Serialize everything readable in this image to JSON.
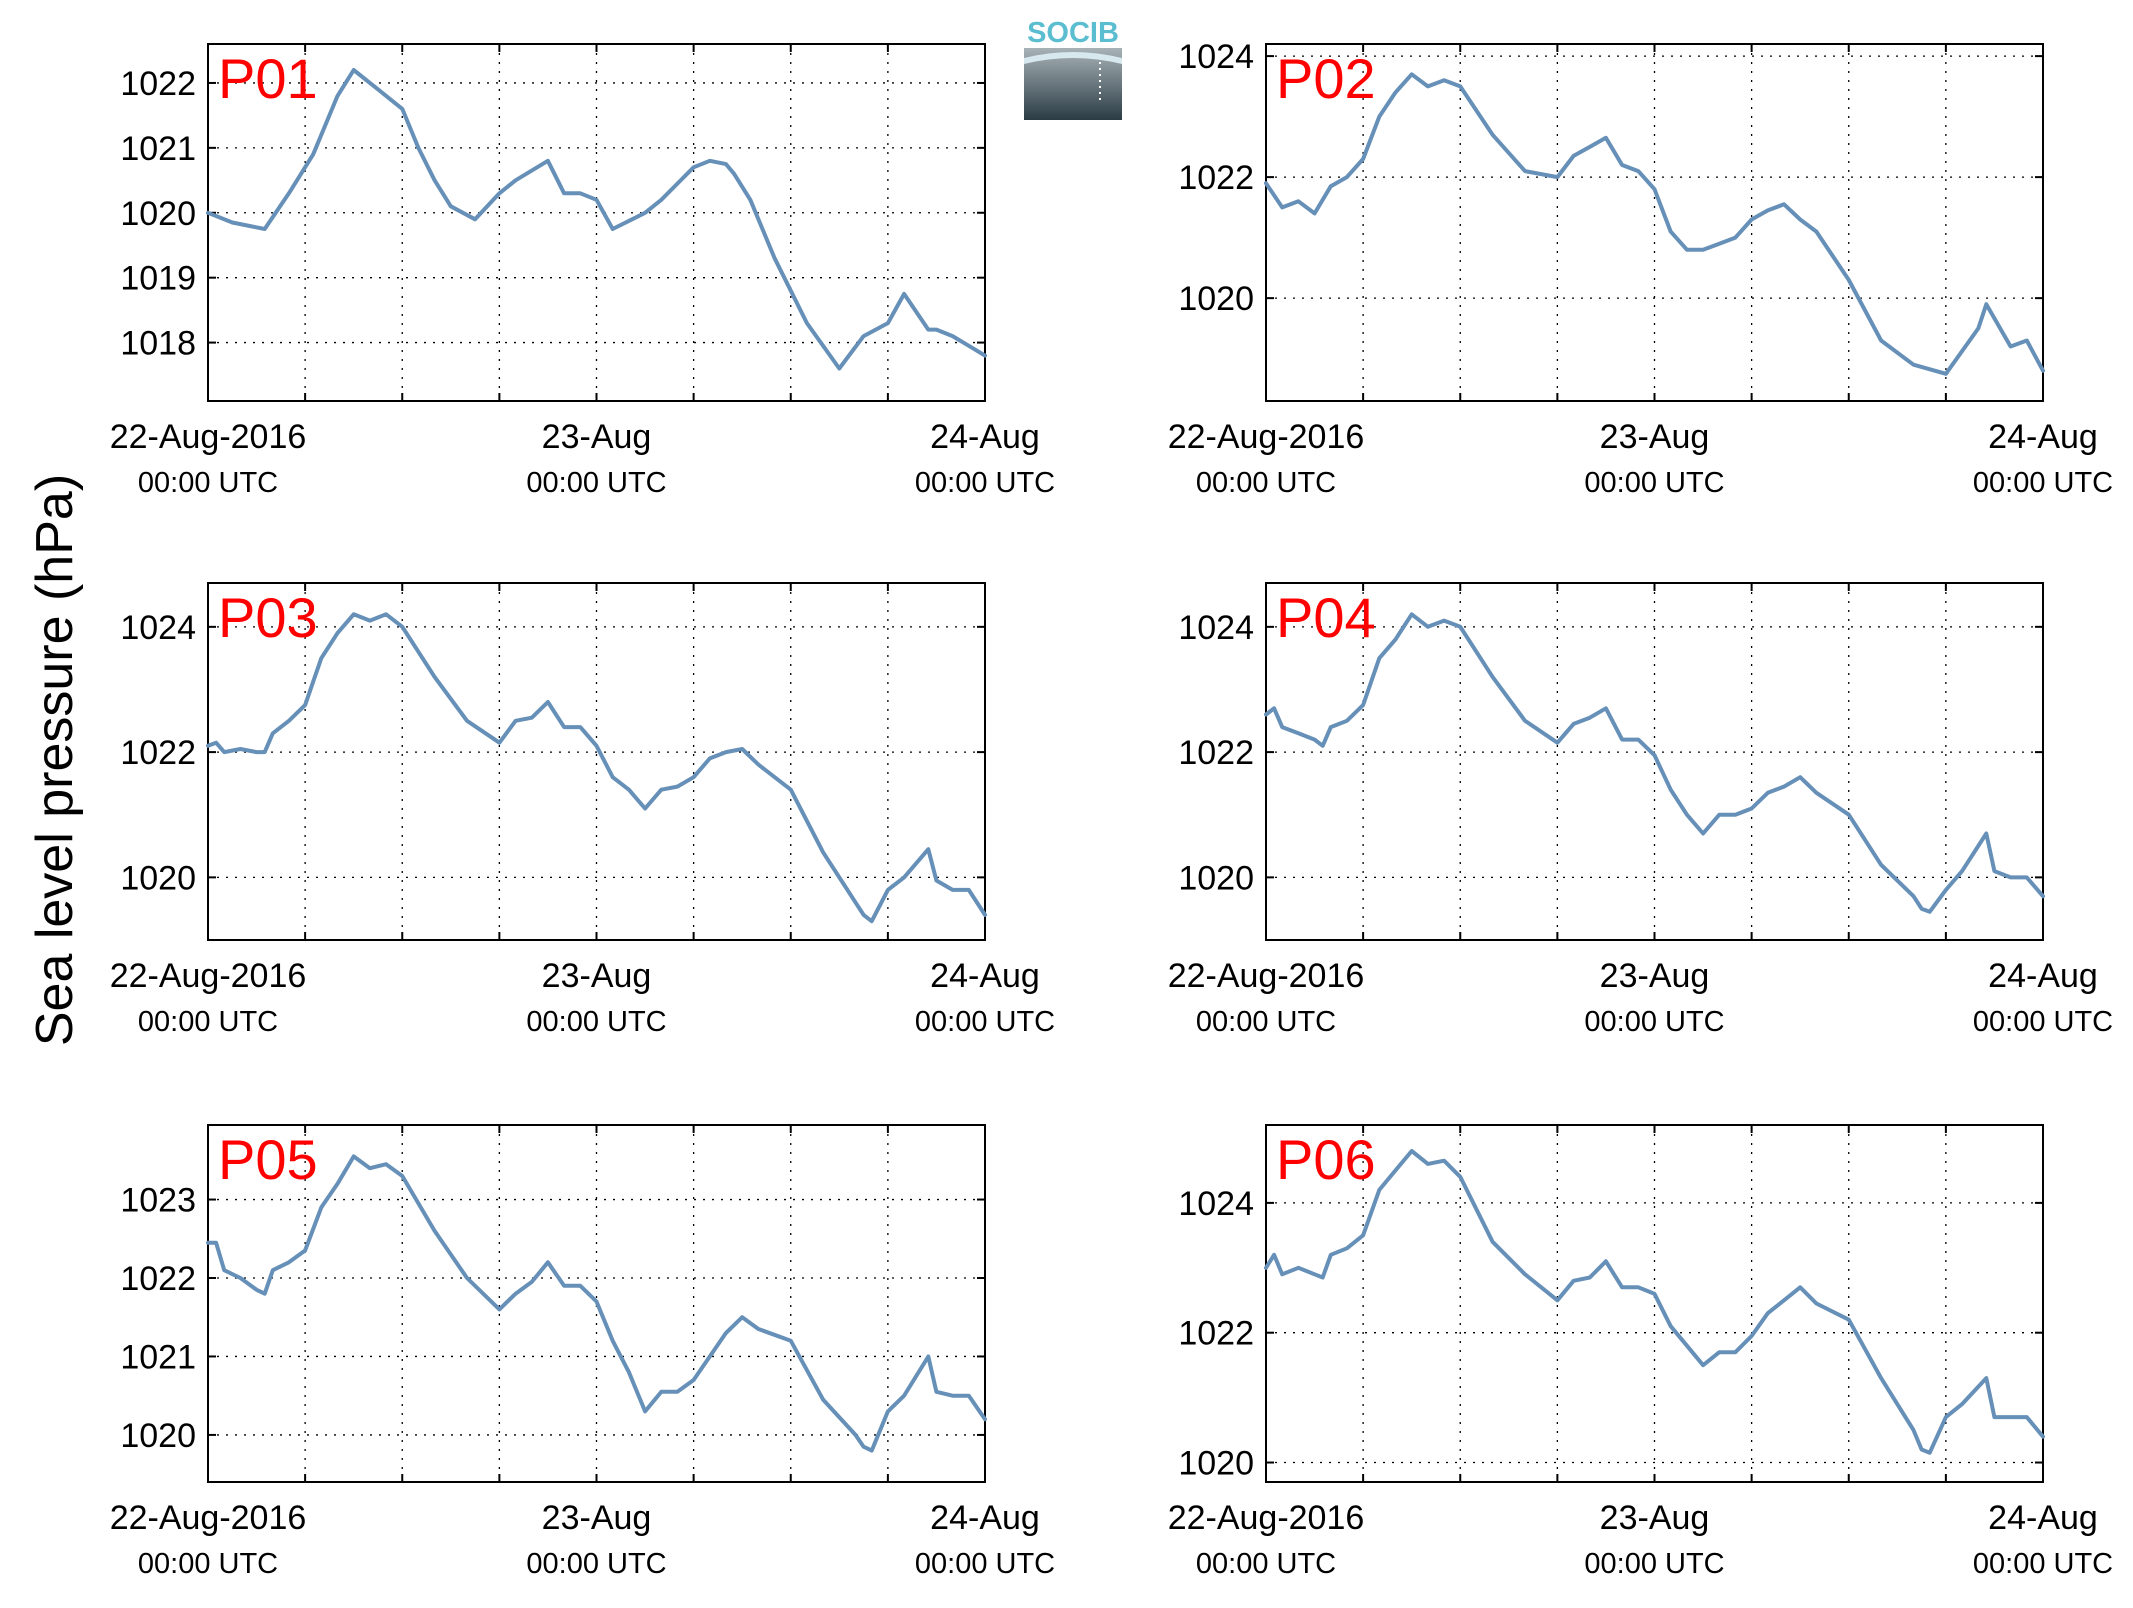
{
  "figure": {
    "ylabel": "Sea level pressure (hPa)",
    "logo_text": "SOCIB",
    "colors": {
      "line": "#6690b8",
      "panel_label": "#ff0000",
      "logo_text": "#5bbdd0"
    }
  },
  "chart_data": [
    {
      "type": "line",
      "title": "P01",
      "x_ticks": [
        {
          "x": 0,
          "date": "22-Aug-2016",
          "time": "00:00 UTC"
        },
        {
          "x": 24,
          "date": "23-Aug",
          "time": "00:00 UTC"
        },
        {
          "x": 48,
          "date": "24-Aug",
          "time": "00:00 UTC"
        }
      ],
      "xlim": [
        0,
        48
      ],
      "x_grid_step_hours": 6,
      "ylim": [
        1017.1,
        1022.6
      ],
      "yticks": [
        1018,
        1019,
        1020,
        1021,
        1022
      ],
      "grid": true,
      "series": [
        {
          "x": [
            0,
            1.5,
            3.5,
            5,
            6.5,
            8,
            9,
            10,
            12,
            13,
            14,
            15,
            16.5,
            18,
            19,
            21,
            22,
            23,
            24,
            25,
            27,
            28,
            29,
            30,
            31,
            32,
            32.5,
            33.5,
            35,
            37,
            39,
            40.5,
            42,
            43,
            44.5,
            45,
            46,
            47,
            48
          ],
          "y": [
            1020.0,
            1019.85,
            1019.75,
            1020.3,
            1020.9,
            1021.8,
            1022.2,
            1022.0,
            1021.6,
            1021.0,
            1020.5,
            1020.1,
            1019.9,
            1020.3,
            1020.5,
            1020.8,
            1020.3,
            1020.3,
            1020.2,
            1019.75,
            1020.0,
            1020.2,
            1020.45,
            1020.7,
            1020.8,
            1020.75,
            1020.6,
            1020.2,
            1019.3,
            1018.3,
            1017.6,
            1018.1,
            1018.3,
            1018.75,
            1018.2,
            1018.2,
            1018.1,
            1017.95,
            1017.8
          ]
        }
      ]
    },
    {
      "type": "line",
      "title": "P02",
      "x_ticks": [
        {
          "x": 0,
          "date": "22-Aug-2016",
          "time": "00:00 UTC"
        },
        {
          "x": 24,
          "date": "23-Aug",
          "time": "00:00 UTC"
        },
        {
          "x": 48,
          "date": "24-Aug",
          "time": "00:00 UTC"
        }
      ],
      "xlim": [
        0,
        48
      ],
      "x_grid_step_hours": 6,
      "ylim": [
        1018.3,
        1024.2
      ],
      "yticks": [
        1020,
        1022,
        1024
      ],
      "grid": true,
      "series": [
        {
          "x": [
            0,
            1,
            2,
            3,
            4,
            5,
            6,
            7,
            8,
            9,
            10,
            11,
            12,
            14,
            16,
            18,
            19,
            20,
            21,
            22,
            23,
            24,
            25,
            26,
            27,
            28,
            29,
            30,
            31,
            32,
            33,
            34,
            36,
            38,
            40,
            42,
            44,
            44.5,
            46,
            47,
            48
          ],
          "y": [
            1021.9,
            1021.5,
            1021.6,
            1021.4,
            1021.85,
            1022.0,
            1022.3,
            1023.0,
            1023.4,
            1023.7,
            1023.5,
            1023.6,
            1023.5,
            1022.7,
            1022.1,
            1022.0,
            1022.35,
            1022.5,
            1022.65,
            1022.2,
            1022.1,
            1021.8,
            1021.1,
            1020.8,
            1020.8,
            1020.9,
            1021.0,
            1021.3,
            1021.45,
            1021.55,
            1021.3,
            1021.1,
            1020.3,
            1019.3,
            1018.9,
            1018.75,
            1019.5,
            1019.9,
            1019.2,
            1019.3,
            1018.8
          ]
        }
      ]
    },
    {
      "type": "line",
      "title": "P03",
      "x_ticks": [
        {
          "x": 0,
          "date": "22-Aug-2016",
          "time": "00:00 UTC"
        },
        {
          "x": 24,
          "date": "23-Aug",
          "time": "00:00 UTC"
        },
        {
          "x": 48,
          "date": "24-Aug",
          "time": "00:00 UTC"
        }
      ],
      "xlim": [
        0,
        48
      ],
      "x_grid_step_hours": 6,
      "ylim": [
        1019.0,
        1024.7
      ],
      "yticks": [
        1020,
        1022,
        1024
      ],
      "grid": true,
      "series": [
        {
          "x": [
            0,
            0.5,
            1,
            2,
            3,
            3.5,
            4,
            5,
            6,
            7,
            8,
            9,
            10,
            11,
            12,
            14,
            16,
            18,
            19,
            20,
            21,
            22,
            23,
            24,
            25,
            26,
            27,
            28,
            29,
            30,
            31,
            32,
            33,
            34,
            36,
            38,
            40,
            40.5,
            41,
            42,
            43,
            44.5,
            45,
            46,
            47,
            48
          ],
          "y": [
            1022.1,
            1022.15,
            1022.0,
            1022.05,
            1022.0,
            1022.0,
            1022.3,
            1022.5,
            1022.75,
            1023.5,
            1023.9,
            1024.2,
            1024.1,
            1024.2,
            1024.0,
            1023.2,
            1022.5,
            1022.15,
            1022.5,
            1022.55,
            1022.8,
            1022.4,
            1022.4,
            1022.1,
            1021.6,
            1021.4,
            1021.1,
            1021.4,
            1021.45,
            1021.6,
            1021.9,
            1022.0,
            1022.05,
            1021.8,
            1021.4,
            1020.4,
            1019.6,
            1019.4,
            1019.3,
            1019.8,
            1020.0,
            1020.45,
            1019.95,
            1019.8,
            1019.8,
            1019.4
          ]
        }
      ]
    },
    {
      "type": "line",
      "title": "P04",
      "x_ticks": [
        {
          "x": 0,
          "date": "22-Aug-2016",
          "time": "00:00 UTC"
        },
        {
          "x": 24,
          "date": "23-Aug",
          "time": "00:00 UTC"
        },
        {
          "x": 48,
          "date": "24-Aug",
          "time": "00:00 UTC"
        }
      ],
      "xlim": [
        0,
        48
      ],
      "x_grid_step_hours": 6,
      "ylim": [
        1019.0,
        1024.7
      ],
      "yticks": [
        1020,
        1022,
        1024
      ],
      "grid": true,
      "series": [
        {
          "x": [
            0,
            0.5,
            1,
            2,
            3,
            3.5,
            4,
            5,
            6,
            7,
            8,
            9,
            10,
            11,
            12,
            14,
            16,
            18,
            19,
            20,
            21,
            22,
            23,
            24,
            25,
            26,
            27,
            28,
            29,
            30,
            31,
            32,
            33,
            34,
            36,
            38,
            40,
            40.5,
            41,
            42,
            43,
            44.5,
            45,
            46,
            47,
            48
          ],
          "y": [
            1022.6,
            1022.7,
            1022.4,
            1022.3,
            1022.2,
            1022.1,
            1022.4,
            1022.5,
            1022.75,
            1023.5,
            1023.8,
            1024.2,
            1024.0,
            1024.1,
            1024.0,
            1023.2,
            1022.5,
            1022.15,
            1022.45,
            1022.55,
            1022.7,
            1022.2,
            1022.2,
            1021.95,
            1021.4,
            1021.0,
            1020.7,
            1021.0,
            1021.0,
            1021.1,
            1021.35,
            1021.45,
            1021.6,
            1021.35,
            1021.0,
            1020.2,
            1019.7,
            1019.5,
            1019.45,
            1019.8,
            1020.1,
            1020.7,
            1020.1,
            1020.0,
            1020.0,
            1019.7
          ]
        }
      ]
    },
    {
      "type": "line",
      "title": "P05",
      "x_ticks": [
        {
          "x": 0,
          "date": "22-Aug-2016",
          "time": "00:00 UTC"
        },
        {
          "x": 24,
          "date": "23-Aug",
          "time": "00:00 UTC"
        },
        {
          "x": 48,
          "date": "24-Aug",
          "time": "00:00 UTC"
        }
      ],
      "xlim": [
        0,
        48
      ],
      "x_grid_step_hours": 6,
      "ylim": [
        1019.4,
        1023.95
      ],
      "yticks": [
        1020,
        1021,
        1022,
        1023
      ],
      "grid": true,
      "series": [
        {
          "x": [
            0,
            0.5,
            1,
            2,
            3,
            3.5,
            4,
            5,
            6,
            7,
            8,
            9,
            10,
            11,
            12,
            14,
            16,
            18,
            19,
            20,
            21,
            22,
            23,
            24,
            25,
            26,
            27,
            28,
            29,
            30,
            31,
            32,
            33,
            34,
            36,
            38,
            40,
            40.5,
            41,
            42,
            43,
            44.5,
            45,
            46,
            47,
            48
          ],
          "y": [
            1022.45,
            1022.45,
            1022.1,
            1022.0,
            1021.85,
            1021.8,
            1022.1,
            1022.2,
            1022.35,
            1022.9,
            1023.2,
            1023.55,
            1023.4,
            1023.45,
            1023.3,
            1022.6,
            1022.0,
            1021.6,
            1021.8,
            1021.95,
            1022.2,
            1021.9,
            1021.9,
            1021.7,
            1021.2,
            1020.8,
            1020.3,
            1020.55,
            1020.55,
            1020.7,
            1021.0,
            1021.3,
            1021.5,
            1021.35,
            1021.2,
            1020.45,
            1020.0,
            1019.85,
            1019.8,
            1020.3,
            1020.5,
            1021.0,
            1020.55,
            1020.5,
            1020.5,
            1020.2
          ]
        }
      ]
    },
    {
      "type": "line",
      "title": "P06",
      "x_ticks": [
        {
          "x": 0,
          "date": "22-Aug-2016",
          "time": "00:00 UTC"
        },
        {
          "x": 24,
          "date": "23-Aug",
          "time": "00:00 UTC"
        },
        {
          "x": 48,
          "date": "24-Aug",
          "time": "00:00 UTC"
        }
      ],
      "xlim": [
        0,
        48
      ],
      "x_grid_step_hours": 6,
      "ylim": [
        1019.7,
        1025.2
      ],
      "yticks": [
        1020,
        1022,
        1024
      ],
      "grid": true,
      "series": [
        {
          "x": [
            0,
            0.5,
            1,
            2,
            3,
            3.5,
            4,
            5,
            6,
            7,
            8,
            9,
            10,
            11,
            12,
            14,
            16,
            18,
            19,
            20,
            21,
            22,
            23,
            24,
            25,
            26,
            27,
            28,
            29,
            30,
            31,
            32,
            33,
            34,
            36,
            38,
            40,
            40.5,
            41,
            42,
            43,
            44.5,
            45,
            46,
            47,
            48
          ],
          "y": [
            1023.0,
            1023.2,
            1022.9,
            1023.0,
            1022.9,
            1022.85,
            1023.2,
            1023.3,
            1023.5,
            1024.2,
            1024.5,
            1024.8,
            1024.6,
            1024.65,
            1024.4,
            1023.4,
            1022.9,
            1022.5,
            1022.8,
            1022.85,
            1023.1,
            1022.7,
            1022.7,
            1022.6,
            1022.1,
            1021.8,
            1021.5,
            1021.7,
            1021.7,
            1021.95,
            1022.3,
            1022.5,
            1022.7,
            1022.45,
            1022.2,
            1021.3,
            1020.5,
            1020.2,
            1020.15,
            1020.7,
            1020.9,
            1021.3,
            1020.7,
            1020.7,
            1020.7,
            1020.4
          ]
        }
      ]
    }
  ]
}
